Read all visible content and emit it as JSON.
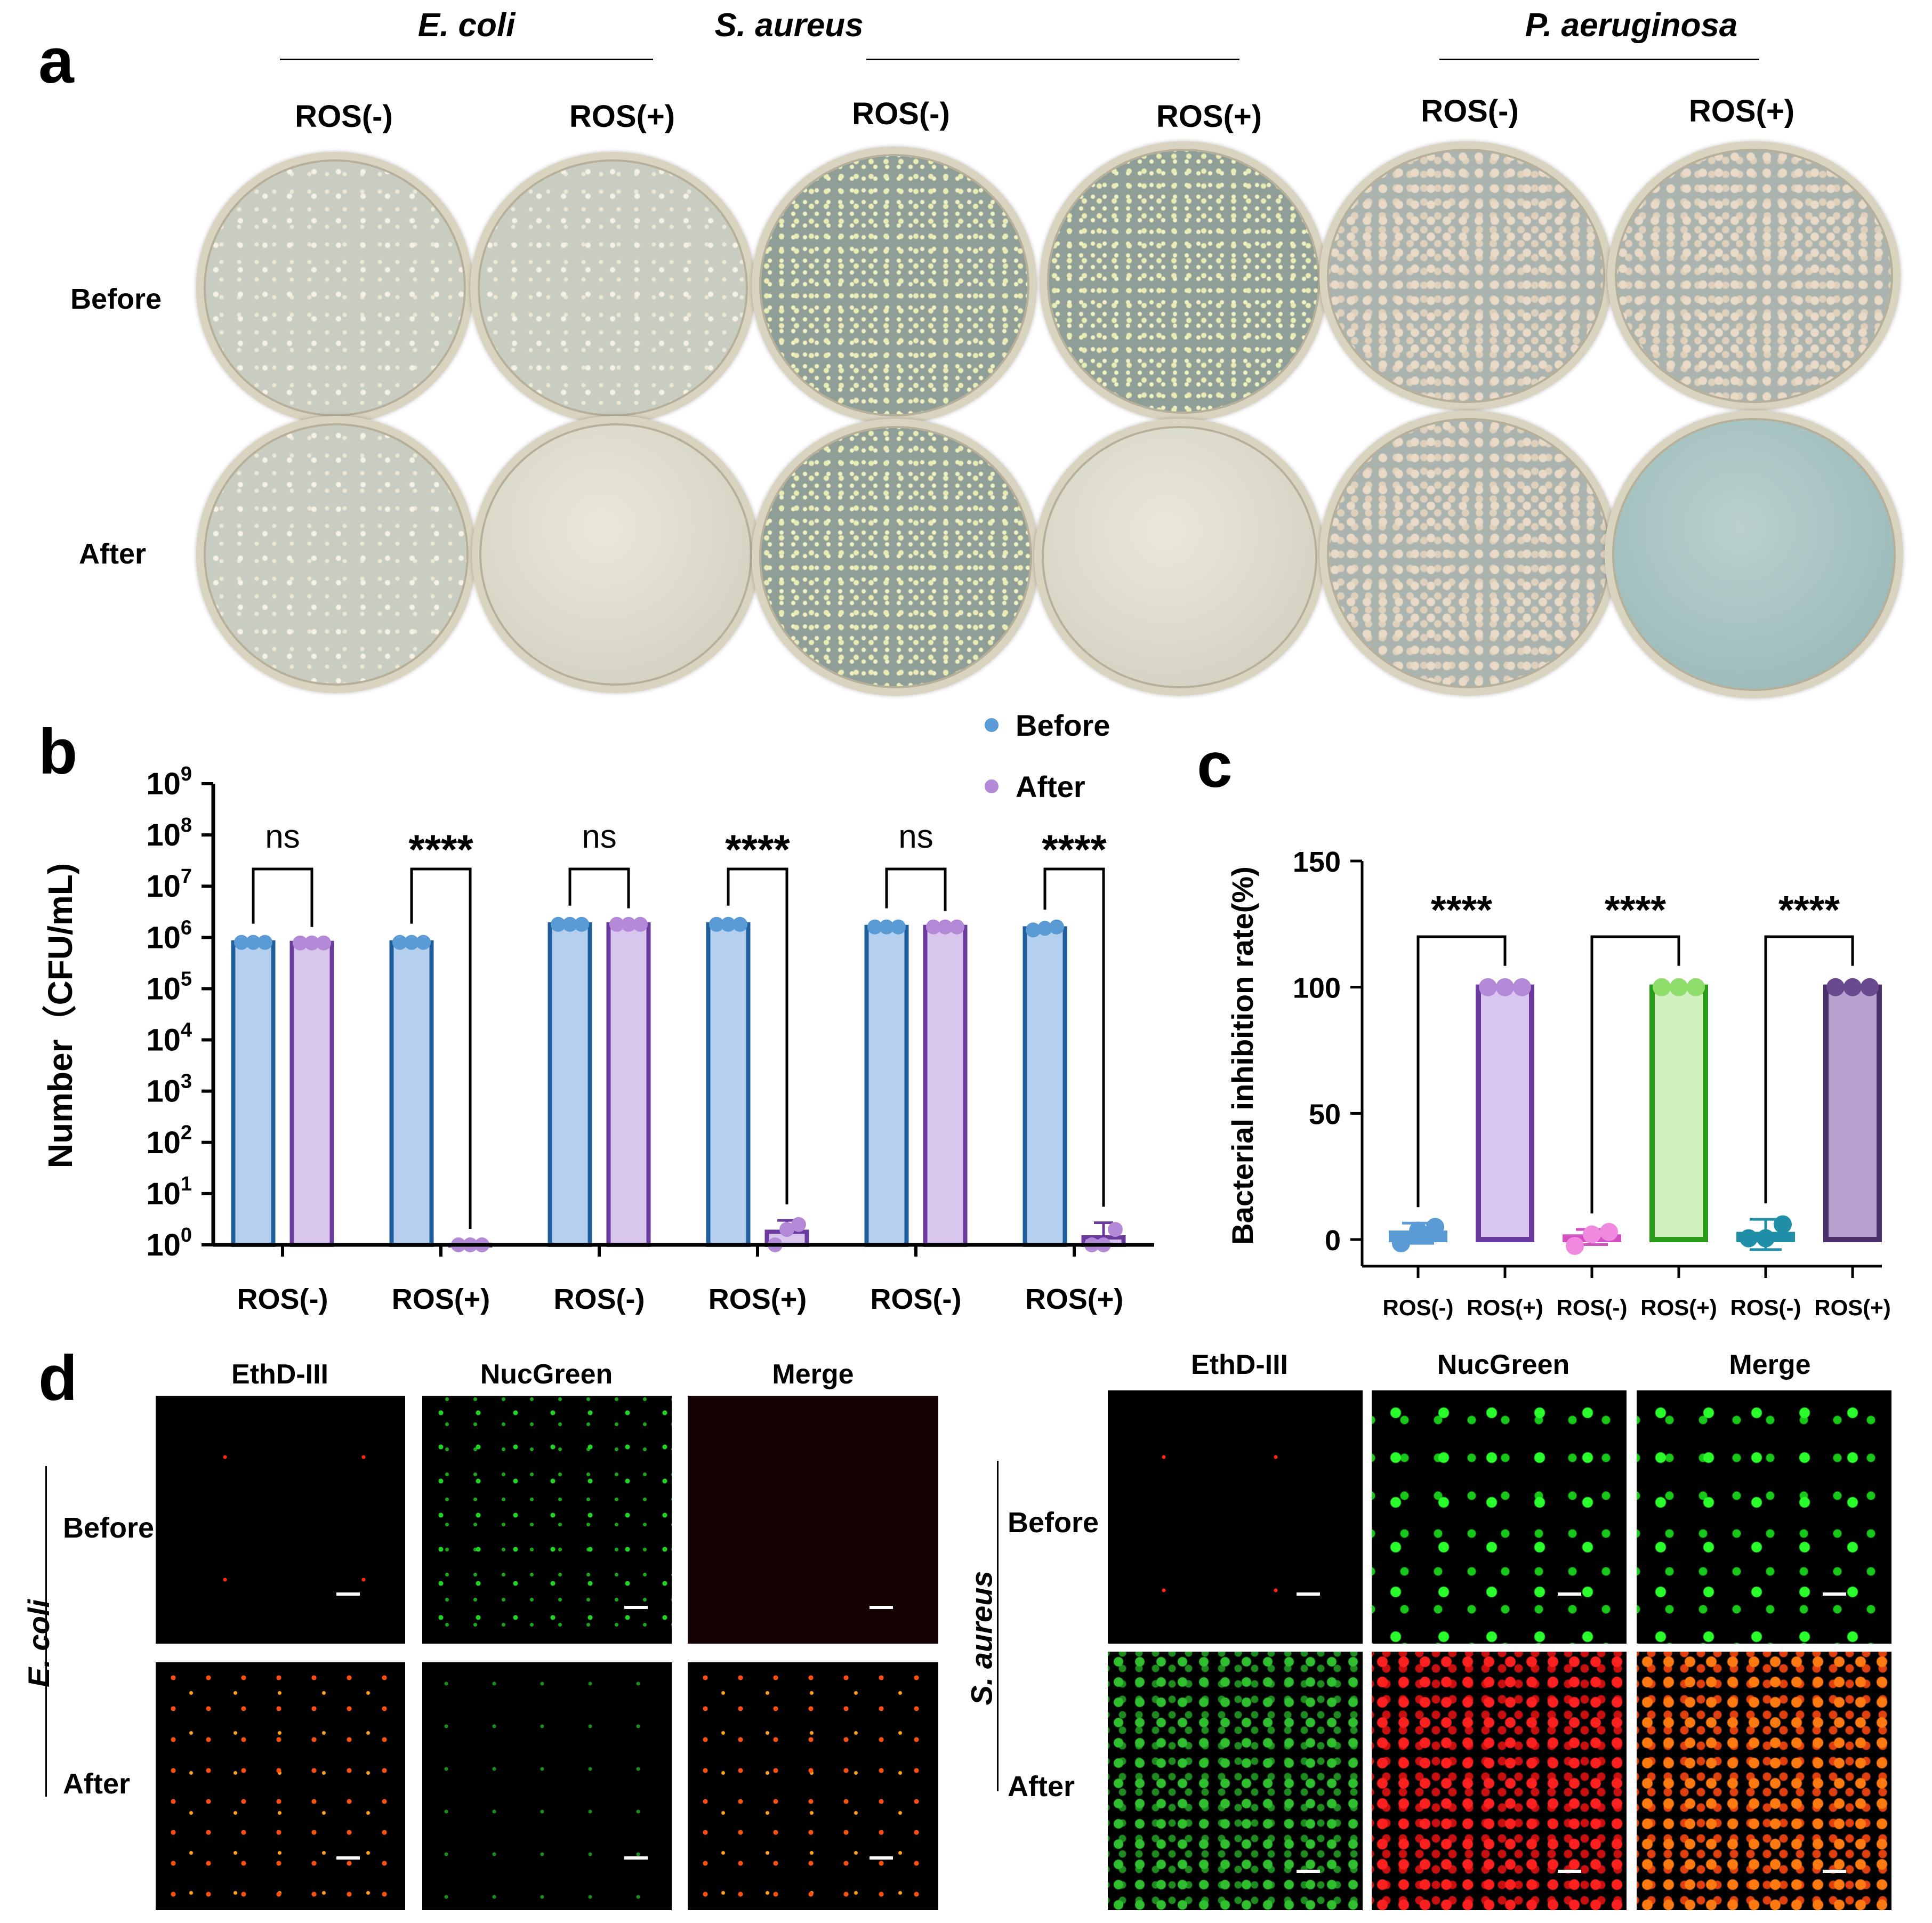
{
  "panel_a": {
    "letter": "a",
    "species": [
      "E. coli",
      "S. aureus",
      "P. aeruginosa"
    ],
    "conditions": [
      "ROS(-)",
      "ROS(+)",
      "ROS(-)",
      "ROS(+)",
      "ROS(-)",
      "ROS(+)"
    ],
    "rows": [
      "Before",
      "After"
    ]
  },
  "panel_b": {
    "letter": "b",
    "legend": [
      "Before",
      "After"
    ],
    "ylabel": "Number（CFU/mL)",
    "tick_base": "10",
    "tick_exponents": [
      "0",
      "1",
      "2",
      "3",
      "4",
      "5",
      "6",
      "7",
      "8",
      "9"
    ],
    "sig": [
      "ns",
      "****",
      "ns",
      "****",
      "ns",
      "****"
    ]
  },
  "panel_c": {
    "letter": "c",
    "ylabel": "Bacterial inhibition rate(%)",
    "sig": [
      "****",
      "****",
      "****"
    ]
  },
  "panel_d": {
    "letter": "d",
    "channels": [
      "EthD-III",
      "NucGreen",
      "Merge"
    ],
    "rows": [
      "Before",
      "After"
    ],
    "species": [
      "E. coli",
      "S. aureus"
    ]
  },
  "colors": {
    "before_fill": "#b5d0ee",
    "before_edge": "#1f5f9e",
    "after_fill": "#d8c6ec",
    "after_edge": "#6a3a9e",
    "legend_before": "#5b9bd5",
    "legend_after": "#b48ad8"
  },
  "chart_data": [
    {
      "type": "bar",
      "panel": "b",
      "scale": "log10",
      "categories": [
        "ROS(-)",
        "ROS(+)",
        "ROS(-)",
        "ROS(+)",
        "ROS(-)",
        "ROS(+)"
      ],
      "ylim": [
        1,
        1000000000
      ],
      "series": [
        {
          "name": "Before",
          "values": [
            800000,
            800000,
            1800000,
            1800000,
            1600000,
            1500000
          ],
          "errors": [
            0,
            0,
            0,
            0,
            0,
            0
          ],
          "points": [
            [
              800000,
              800000,
              800000
            ],
            [
              800000,
              800000,
              800000
            ],
            [
              1800000,
              1800000,
              1800000
            ],
            [
              1800000,
              1800000,
              1800000
            ],
            [
              1600000,
              1600000,
              1600000
            ],
            [
              1400000,
              1500000,
              1600000
            ]
          ]
        },
        {
          "name": "After",
          "values": [
            780000,
            1,
            1800000,
            1.8,
            1600000,
            1.4
          ],
          "errors": [
            0,
            0,
            0,
            1.2,
            0,
            1.3
          ],
          "points": [
            [
              780000,
              780000,
              780000
            ],
            [
              1,
              1,
              1
            ],
            [
              1800000,
              1800000,
              1800000
            ],
            [
              1,
              2,
              2.5
            ],
            [
              1600000,
              1600000,
              1600000
            ],
            [
              1,
              1,
              2
            ]
          ]
        }
      ],
      "significance": [
        "ns",
        "****",
        "ns",
        "****",
        "ns",
        "****"
      ]
    },
    {
      "type": "bar",
      "panel": "c",
      "categories": [
        "ROS(-)",
        "ROS(+)",
        "ROS(-)",
        "ROS(+)",
        "ROS(-)",
        "ROS(+)"
      ],
      "values": [
        2.5,
        100,
        1.0,
        100,
        2.0,
        100
      ],
      "errors": [
        4.0,
        0,
        3.0,
        0,
        6.0,
        0
      ],
      "points": [
        [
          -1.5,
          3.5,
          5.0
        ],
        [
          100,
          100,
          100
        ],
        [
          -2.5,
          2.0,
          3.0
        ],
        [
          100,
          100,
          100
        ],
        [
          0.5,
          0.5,
          6.0
        ],
        [
          100,
          100,
          100
        ]
      ],
      "ylim": [
        0,
        150
      ],
      "yticks": [
        0,
        50,
        100,
        150
      ],
      "fills": [
        "#5b9bd5",
        "#d9c6ef",
        "#f08ae0",
        "#d1f0bf",
        "#1f8fa8",
        "#b7a2cf"
      ],
      "edges": [
        "#5b9bd5",
        "#6a3a9e",
        "#d050c0",
        "#2a9a1a",
        "#1f8fa8",
        "#4a2f6a"
      ],
      "significance": [
        "****",
        "****",
        "****"
      ]
    }
  ]
}
